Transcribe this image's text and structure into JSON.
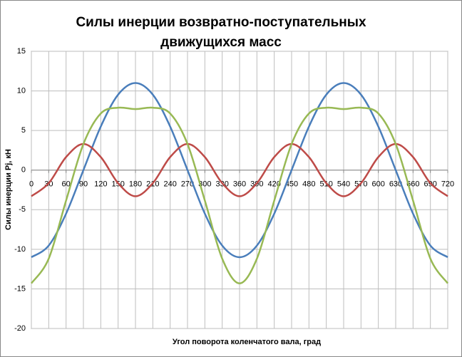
{
  "chart_data": {
    "type": "line",
    "title": [
      "Силы инерции возвратно-поступательных",
      "движущихся масс"
    ],
    "x_label": "Угол поворота коленчатого вала, град",
    "y_label": "Силы инерции Pj, кН",
    "categories": [
      0,
      30,
      60,
      90,
      120,
      150,
      180,
      210,
      240,
      270,
      300,
      330,
      360,
      390,
      420,
      450,
      480,
      510,
      540,
      570,
      600,
      630,
      660,
      690,
      720
    ],
    "series": [
      {
        "color": "#4a7ebb",
        "values": [
          -11,
          -9.53,
          -5.5,
          0,
          5.5,
          9.53,
          11,
          9.53,
          5.5,
          0,
          -5.5,
          -9.53,
          -11,
          -9.53,
          -5.5,
          0,
          5.5,
          9.53,
          11,
          9.53,
          5.5,
          0,
          -5.5,
          -9.53,
          -11
        ]
      },
      {
        "color": "#be4b48",
        "values": [
          -3.3,
          -1.65,
          1.65,
          3.3,
          1.65,
          -1.65,
          -3.3,
          -1.65,
          1.65,
          3.3,
          1.65,
          -1.65,
          -3.3,
          -1.65,
          1.65,
          3.3,
          1.65,
          -1.65,
          -3.3,
          -1.65,
          1.65,
          3.3,
          1.65,
          -1.65,
          -3.3
        ]
      },
      {
        "color": "#98b954",
        "values": [
          -14.3,
          -11.18,
          -3.85,
          3.3,
          7.15,
          7.88,
          7.7,
          7.88,
          7.15,
          3.3,
          -3.85,
          -11.18,
          -14.3,
          -11.18,
          -3.85,
          3.3,
          7.15,
          7.88,
          7.7,
          7.88,
          7.15,
          3.3,
          -3.85,
          -11.18,
          -14.3
        ]
      }
    ],
    "ylim": [
      -20,
      15
    ],
    "yticks": [
      -20,
      -15,
      -10,
      -5,
      0,
      5,
      10,
      15
    ],
    "grid": true
  }
}
